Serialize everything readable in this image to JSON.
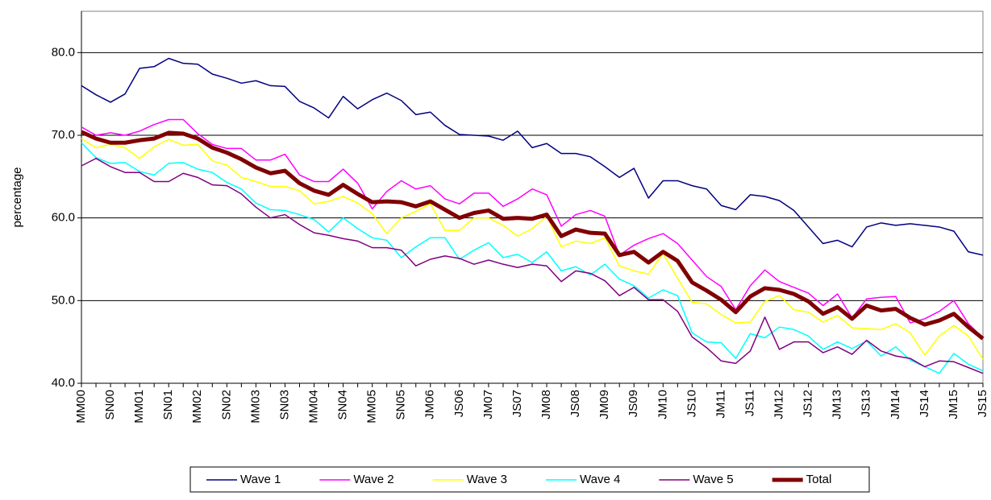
{
  "chart_data": {
    "type": "line",
    "categories": [
      "MM00",
      null,
      "SN00",
      null,
      "MM01",
      null,
      "SN01",
      null,
      "MM02",
      null,
      "SN02",
      null,
      "MM03",
      null,
      "SN03",
      null,
      "MM04",
      null,
      "SN04",
      null,
      "MM05",
      null,
      "SN05",
      null,
      "JM06",
      null,
      "JS06",
      null,
      "JM07",
      null,
      "JS07",
      null,
      "JM08",
      null,
      "JS08",
      null,
      "JM09",
      null,
      "JS09",
      null,
      "JM10",
      null,
      "JS10",
      null,
      "JM11",
      null,
      "JS11",
      null,
      "JM12",
      null,
      "JS12",
      null,
      "JM13",
      null,
      "JS13",
      null,
      "JM14",
      null,
      "JS14",
      null,
      "JM15",
      null,
      "JS15"
    ],
    "series": [
      {
        "name": "Wave 1",
        "color": "#000080",
        "width": 1.5,
        "values": [
          76.0,
          74.9,
          74.0,
          75.0,
          78.1,
          78.3,
          79.3,
          78.7,
          78.6,
          77.4,
          76.9,
          76.3,
          76.6,
          76.0,
          75.9,
          74.1,
          73.3,
          72.1,
          74.7,
          73.2,
          74.3,
          75.1,
          74.2,
          72.5,
          72.8,
          71.2,
          70.1,
          70.0,
          69.9,
          69.4,
          70.5,
          68.5,
          69.0,
          67.8,
          67.8,
          67.4,
          66.2,
          64.9,
          66.0,
          62.4,
          64.5,
          64.5,
          63.9,
          63.5,
          61.5,
          61.0,
          62.8,
          62.6,
          62.1,
          60.9,
          58.9,
          56.9,
          57.3,
          56.5,
          58.9,
          59.4,
          59.1,
          59.3,
          59.1,
          58.9,
          58.4,
          55.9,
          55.5
        ]
      },
      {
        "name": "Wave 2",
        "color": "#ff00ff",
        "width": 1.5,
        "values": [
          71.0,
          70.0,
          70.3,
          70.0,
          70.5,
          71.3,
          71.9,
          71.9,
          70.2,
          68.9,
          68.4,
          68.4,
          67.0,
          67.0,
          67.7,
          65.2,
          64.4,
          64.4,
          65.9,
          64.2,
          61.1,
          63.2,
          64.5,
          63.5,
          63.9,
          62.3,
          61.7,
          63.0,
          63.0,
          61.4,
          62.3,
          63.5,
          62.8,
          59.0,
          60.4,
          60.9,
          60.2,
          55.5,
          56.7,
          57.5,
          58.1,
          56.9,
          54.9,
          52.9,
          51.7,
          48.9,
          51.8,
          53.7,
          52.3,
          51.6,
          50.9,
          49.4,
          50.8,
          47.9,
          50.2,
          50.4,
          50.5,
          47.3,
          47.8,
          48.7,
          50.0,
          47.2,
          45.5
        ]
      },
      {
        "name": "Wave 3",
        "color": "#ffff00",
        "width": 1.5,
        "values": [
          69.6,
          68.5,
          68.9,
          68.5,
          67.2,
          68.6,
          69.5,
          68.8,
          68.9,
          66.9,
          66.4,
          64.9,
          64.4,
          63.8,
          63.8,
          63.3,
          61.7,
          62.0,
          62.6,
          61.8,
          60.5,
          58.1,
          60.0,
          60.8,
          61.7,
          58.5,
          58.5,
          60.0,
          60.0,
          59.1,
          57.8,
          58.7,
          60.2,
          56.5,
          57.2,
          56.9,
          57.6,
          54.2,
          53.6,
          53.2,
          55.7,
          52.7,
          49.8,
          49.6,
          48.3,
          47.3,
          47.4,
          49.9,
          50.6,
          48.9,
          48.6,
          47.4,
          48.2,
          46.7,
          46.6,
          46.5,
          47.2,
          46.1,
          43.4,
          45.7,
          47.0,
          45.7,
          42.9
        ]
      },
      {
        "name": "Wave 4",
        "color": "#00ffff",
        "width": 1.5,
        "values": [
          69.1,
          67.3,
          66.6,
          66.7,
          65.6,
          65.2,
          66.6,
          66.7,
          65.9,
          65.5,
          64.3,
          63.5,
          61.8,
          61.0,
          60.9,
          60.4,
          59.8,
          58.3,
          60.0,
          58.7,
          57.6,
          57.3,
          55.2,
          56.5,
          57.6,
          57.6,
          55.0,
          56.1,
          57.0,
          55.2,
          55.6,
          54.6,
          55.9,
          53.6,
          54.1,
          53.1,
          54.4,
          52.6,
          51.8,
          50.3,
          51.3,
          50.6,
          46.1,
          45.0,
          44.9,
          43.0,
          46.0,
          45.5,
          46.8,
          46.5,
          45.7,
          44.1,
          45.0,
          44.2,
          45.1,
          43.3,
          44.4,
          42.8,
          42.0,
          41.2,
          43.6,
          42.3,
          41.5
        ]
      },
      {
        "name": "Wave 5",
        "color": "#800080",
        "width": 1.5,
        "values": [
          66.3,
          67.2,
          66.2,
          65.5,
          65.5,
          64.4,
          64.4,
          65.4,
          64.9,
          64.0,
          63.9,
          62.9,
          61.3,
          60.0,
          60.4,
          59.2,
          58.2,
          57.9,
          57.5,
          57.2,
          56.4,
          56.4,
          56.1,
          54.2,
          55.0,
          55.4,
          55.1,
          54.4,
          54.9,
          54.4,
          54.0,
          54.4,
          54.2,
          52.3,
          53.6,
          53.3,
          52.4,
          50.6,
          51.6,
          50.1,
          50.1,
          48.7,
          45.6,
          44.3,
          42.7,
          42.4,
          43.9,
          48.0,
          44.1,
          45.0,
          45.0,
          43.7,
          44.4,
          43.5,
          45.2,
          43.9,
          43.3,
          43.0,
          42.0,
          42.7,
          42.6,
          41.9,
          41.2
        ]
      },
      {
        "name": "Total",
        "color": "#800000",
        "width": 5,
        "values": [
          70.4,
          69.6,
          69.1,
          69.1,
          69.4,
          69.6,
          70.3,
          70.2,
          69.6,
          68.5,
          67.9,
          67.1,
          66.1,
          65.4,
          65.7,
          64.2,
          63.3,
          62.8,
          64.0,
          62.9,
          61.9,
          62.0,
          61.9,
          61.4,
          62.0,
          61.0,
          60.0,
          60.6,
          60.9,
          59.9,
          60.0,
          59.9,
          60.4,
          57.8,
          58.6,
          58.2,
          58.1,
          55.5,
          55.9,
          54.6,
          55.9,
          54.8,
          52.2,
          51.2,
          50.1,
          48.6,
          50.5,
          51.5,
          51.3,
          50.8,
          49.9,
          48.4,
          49.2,
          47.8,
          49.4,
          48.8,
          49.0,
          47.9,
          47.1,
          47.6,
          48.4,
          46.8,
          45.4
        ]
      }
    ],
    "y_label": "percentage",
    "ylim": [
      40,
      85
    ],
    "yticks": [
      {
        "value": 40,
        "label": "40.0"
      },
      {
        "value": 50,
        "label": "50.0"
      },
      {
        "value": 60,
        "label": "60.0"
      },
      {
        "value": 70,
        "label": "70.0"
      },
      {
        "value": 80,
        "label": "80.0"
      }
    ],
    "grid": true,
    "legend": "bottom"
  }
}
